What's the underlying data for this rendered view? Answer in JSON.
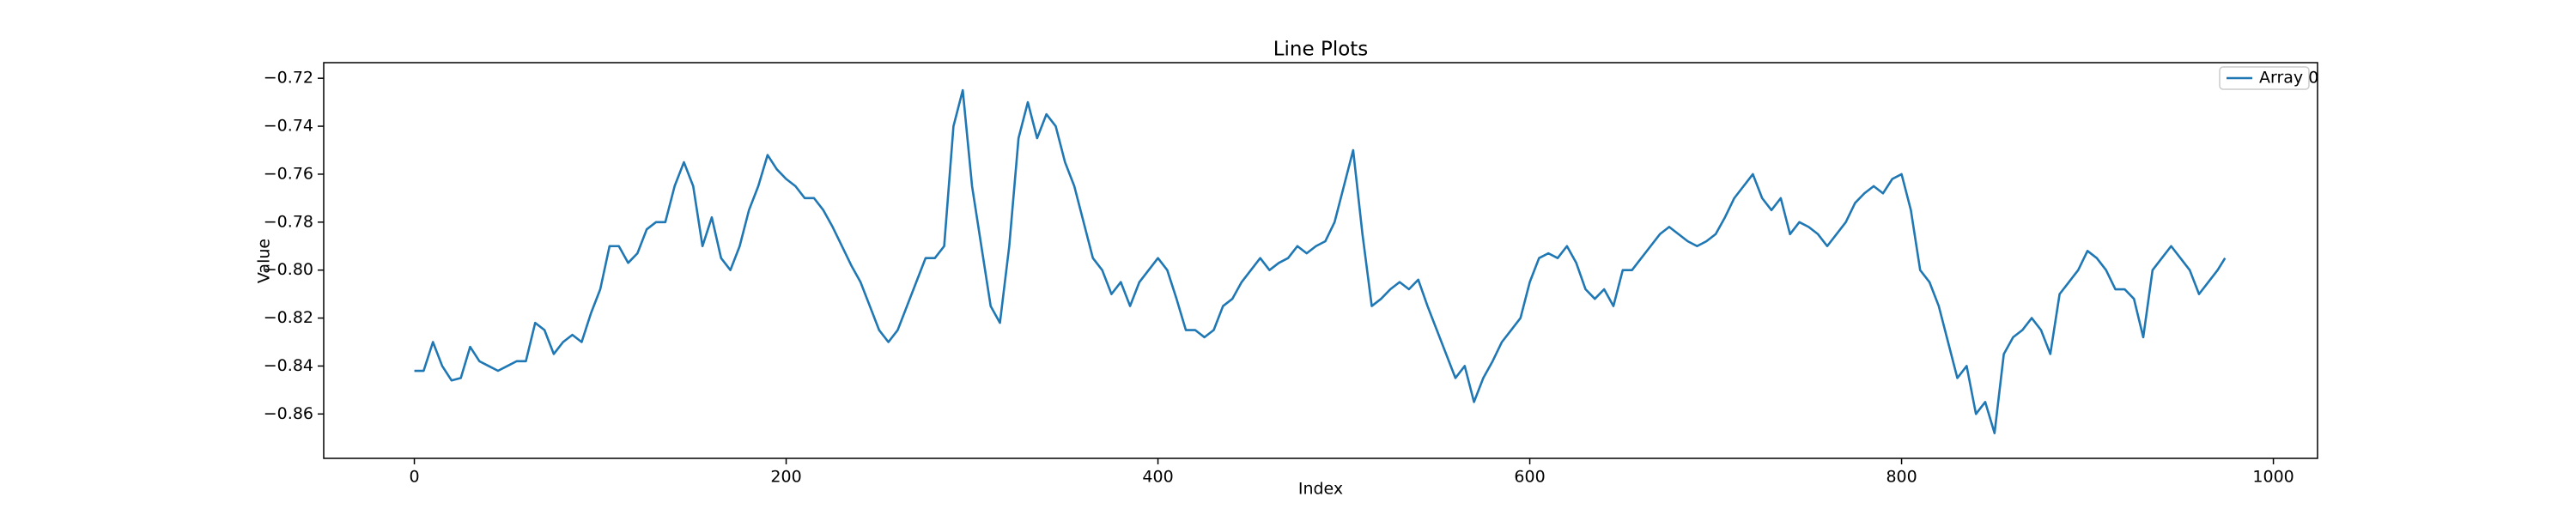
{
  "chart_data": {
    "type": "line",
    "title": "Line Plots",
    "xlabel": "Index",
    "ylabel": "Value",
    "x": [
      0,
      5,
      10,
      15,
      20,
      25,
      30,
      35,
      40,
      45,
      50,
      55,
      60,
      65,
      70,
      75,
      80,
      85,
      90,
      95,
      100,
      105,
      110,
      115,
      120,
      125,
      130,
      135,
      140,
      145,
      150,
      155,
      160,
      165,
      170,
      175,
      180,
      185,
      190,
      195,
      200,
      205,
      210,
      215,
      220,
      225,
      230,
      235,
      240,
      245,
      250,
      255,
      260,
      265,
      270,
      275,
      280,
      285,
      290,
      295,
      300,
      305,
      310,
      315,
      320,
      325,
      330,
      335,
      340,
      345,
      350,
      355,
      360,
      365,
      370,
      375,
      380,
      385,
      390,
      395,
      400,
      405,
      410,
      415,
      420,
      425,
      430,
      435,
      440,
      445,
      450,
      455,
      460,
      465,
      470,
      475,
      480,
      485,
      490,
      495,
      500,
      505,
      510,
      515,
      520,
      525,
      530,
      535,
      540,
      545,
      550,
      555,
      560,
      565,
      570,
      575,
      580,
      585,
      590,
      595,
      600,
      605,
      610,
      615,
      620,
      625,
      630,
      635,
      640,
      645,
      650,
      655,
      660,
      665,
      670,
      675,
      680,
      685,
      690,
      695,
      700,
      705,
      710,
      715,
      720,
      725,
      730,
      735,
      740,
      745,
      750,
      755,
      760,
      765,
      770,
      775,
      780,
      785,
      790,
      795,
      800,
      805,
      810,
      815,
      820,
      825,
      830,
      835,
      840,
      845,
      850,
      855,
      860,
      865,
      870,
      875,
      880,
      885,
      890,
      895,
      900,
      905,
      910,
      915,
      920,
      925,
      930,
      935,
      940,
      945,
      950,
      955,
      960,
      965,
      970,
      974
    ],
    "series": [
      {
        "name": "Array 0",
        "color": "#1f77b4",
        "values": [
          -0.842,
          -0.842,
          -0.83,
          -0.84,
          -0.846,
          -0.845,
          -0.832,
          -0.838,
          -0.84,
          -0.842,
          -0.84,
          -0.838,
          -0.838,
          -0.822,
          -0.825,
          -0.835,
          -0.83,
          -0.827,
          -0.83,
          -0.818,
          -0.808,
          -0.79,
          -0.79,
          -0.797,
          -0.793,
          -0.783,
          -0.78,
          -0.78,
          -0.765,
          -0.755,
          -0.765,
          -0.79,
          -0.778,
          -0.795,
          -0.8,
          -0.79,
          -0.775,
          -0.765,
          -0.752,
          -0.758,
          -0.762,
          -0.765,
          -0.77,
          -0.77,
          -0.775,
          -0.782,
          -0.79,
          -0.798,
          -0.805,
          -0.815,
          -0.825,
          -0.83,
          -0.825,
          -0.815,
          -0.805,
          -0.795,
          -0.795,
          -0.79,
          -0.74,
          -0.725,
          -0.765,
          -0.79,
          -0.815,
          -0.822,
          -0.79,
          -0.745,
          -0.73,
          -0.745,
          -0.735,
          -0.74,
          -0.755,
          -0.765,
          -0.78,
          -0.795,
          -0.8,
          -0.81,
          -0.805,
          -0.815,
          -0.805,
          -0.8,
          -0.795,
          -0.8,
          -0.812,
          -0.825,
          -0.825,
          -0.828,
          -0.825,
          -0.815,
          -0.812,
          -0.805,
          -0.8,
          -0.795,
          -0.8,
          -0.797,
          -0.795,
          -0.79,
          -0.793,
          -0.79,
          -0.788,
          -0.78,
          -0.765,
          -0.75,
          -0.785,
          -0.815,
          -0.812,
          -0.808,
          -0.805,
          -0.808,
          -0.804,
          -0.815,
          -0.825,
          -0.835,
          -0.845,
          -0.84,
          -0.855,
          -0.845,
          -0.838,
          -0.83,
          -0.825,
          -0.82,
          -0.805,
          -0.795,
          -0.793,
          -0.795,
          -0.79,
          -0.797,
          -0.808,
          -0.812,
          -0.808,
          -0.815,
          -0.8,
          -0.8,
          -0.795,
          -0.79,
          -0.785,
          -0.782,
          -0.785,
          -0.788,
          -0.79,
          -0.788,
          -0.785,
          -0.778,
          -0.77,
          -0.765,
          -0.76,
          -0.77,
          -0.775,
          -0.77,
          -0.785,
          -0.78,
          -0.782,
          -0.785,
          -0.79,
          -0.785,
          -0.78,
          -0.772,
          -0.768,
          -0.765,
          -0.768,
          -0.762,
          -0.76,
          -0.775,
          -0.8,
          -0.805,
          -0.815,
          -0.83,
          -0.845,
          -0.84,
          -0.86,
          -0.855,
          -0.868,
          -0.835,
          -0.828,
          -0.825,
          -0.82,
          -0.825,
          -0.835,
          -0.81,
          -0.805,
          -0.8,
          -0.792,
          -0.795,
          -0.8,
          -0.808,
          -0.808,
          -0.812,
          -0.828,
          -0.8,
          -0.795,
          -0.79,
          -0.795,
          -0.8,
          -0.81,
          -0.805,
          -0.8,
          -0.795
        ]
      }
    ],
    "xlim": [
      -48.75,
      1023.75
    ],
    "ylim": [
      -0.8785,
      -0.7135
    ],
    "xticks": [
      0,
      200,
      400,
      600,
      800,
      1000
    ],
    "yticks": [
      {
        "value": -0.86,
        "label": "−0.86"
      },
      {
        "value": -0.84,
        "label": "−0.84"
      },
      {
        "value": -0.82,
        "label": "−0.82"
      },
      {
        "value": -0.8,
        "label": "−0.80"
      },
      {
        "value": -0.78,
        "label": "−0.78"
      },
      {
        "value": -0.76,
        "label": "−0.76"
      },
      {
        "value": -0.74,
        "label": "−0.74"
      },
      {
        "value": -0.72,
        "label": "−0.72"
      }
    ],
    "grid": false,
    "legend": "upper right"
  }
}
